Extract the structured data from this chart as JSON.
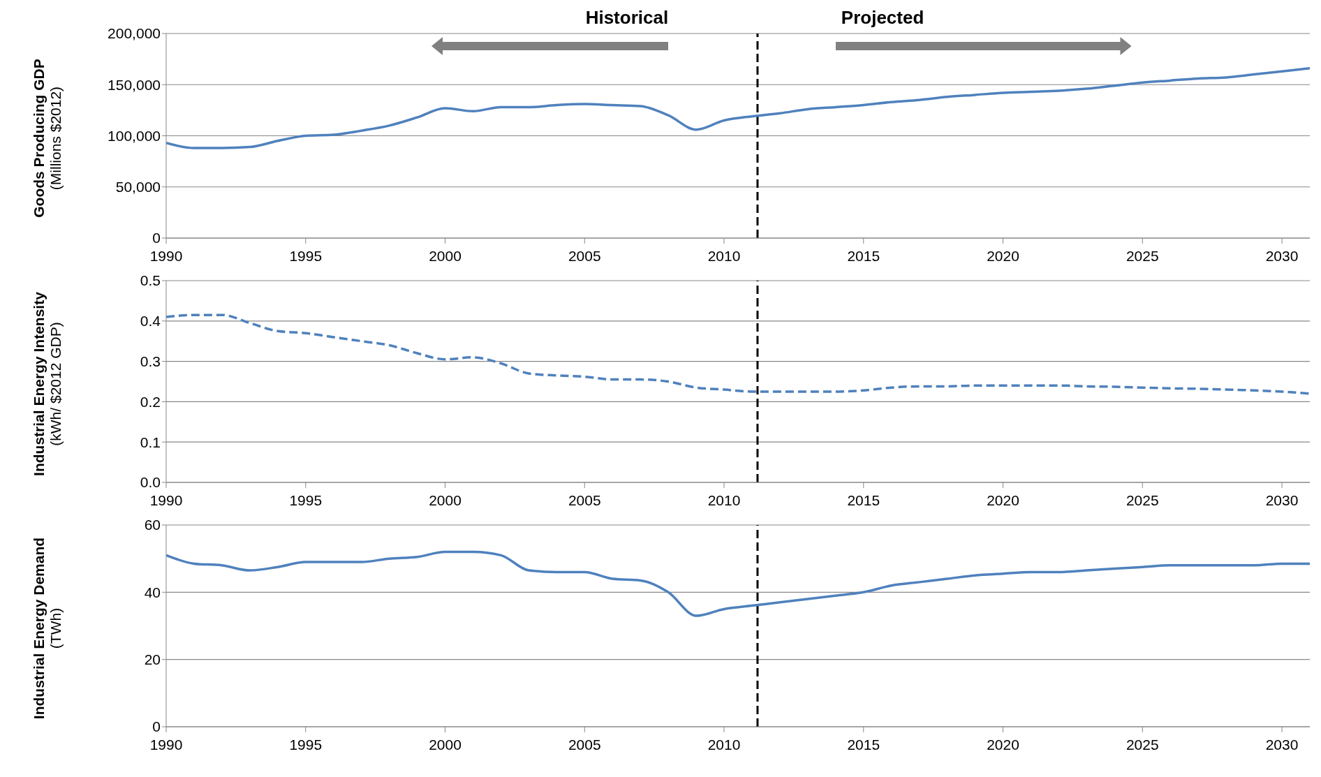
{
  "chart_data": [
    {
      "type": "line",
      "ylabel": "Goods Producing GDP (Millions $2012)",
      "annotations": [
        "Historical",
        "Projected"
      ],
      "x": [
        1990,
        1991,
        1992,
        1993,
        1994,
        1995,
        1996,
        1997,
        1998,
        1999,
        2000,
        2001,
        2002,
        2003,
        2004,
        2005,
        2006,
        2007,
        2008,
        2009,
        2010,
        2011,
        2012,
        2013,
        2014,
        2015,
        2016,
        2017,
        2018,
        2019,
        2020,
        2021,
        2022,
        2023,
        2024,
        2025,
        2026,
        2027,
        2028,
        2029,
        2030,
        2031
      ],
      "series": [
        {
          "color": "#4f81bd",
          "line_style": "solid",
          "values": [
            93000,
            88000,
            88000,
            89000,
            95000,
            100000,
            101000,
            105000,
            110000,
            118000,
            127000,
            124000,
            128000,
            128000,
            130000,
            131000,
            130000,
            129000,
            120000,
            106000,
            115000,
            119000,
            122000,
            126000,
            128000,
            130000,
            133000,
            135000,
            138000,
            140000,
            142000,
            143000,
            144000,
            146000,
            149000,
            152000,
            154000,
            156000,
            157000,
            160000,
            163000,
            166000
          ]
        }
      ],
      "xlim": [
        1990,
        2031
      ],
      "xticks": [
        1990,
        1995,
        2000,
        2005,
        2010,
        2015,
        2020,
        2025,
        2030
      ],
      "ylim": [
        0,
        200000
      ],
      "yticks": [
        {
          "value": 0,
          "label": "0"
        },
        {
          "value": 50000,
          "label": "50,000"
        },
        {
          "value": 100000,
          "label": "100,000"
        },
        {
          "value": 150000,
          "label": "150,000"
        },
        {
          "value": 200000,
          "label": "200,000"
        }
      ],
      "ref_lines": [
        {
          "axis": "x",
          "value": 2011.2,
          "color": "#000000",
          "line_style": "dashed"
        }
      ],
      "grid": "y",
      "legend": false,
      "marker": "none"
    },
    {
      "type": "line",
      "ylabel": "Industrial Energy Intensity (kWh/ $2012 GDP)",
      "x": [
        1990,
        1991,
        1992,
        1993,
        1994,
        1995,
        1996,
        1997,
        1998,
        1999,
        2000,
        2001,
        2002,
        2003,
        2004,
        2005,
        2006,
        2007,
        2008,
        2009,
        2010,
        2011,
        2012,
        2013,
        2014,
        2015,
        2016,
        2017,
        2018,
        2019,
        2020,
        2021,
        2022,
        2023,
        2024,
        2025,
        2026,
        2027,
        2028,
        2029,
        2030,
        2031
      ],
      "series": [
        {
          "color": "#4f81bd",
          "line_style": "dashed",
          "values": [
            0.41,
            0.415,
            0.415,
            0.395,
            0.375,
            0.37,
            0.36,
            0.35,
            0.34,
            0.32,
            0.305,
            0.31,
            0.295,
            0.27,
            0.265,
            0.262,
            0.255,
            0.255,
            0.25,
            0.235,
            0.23,
            0.225,
            0.225,
            0.225,
            0.225,
            0.228,
            0.235,
            0.238,
            0.238,
            0.24,
            0.24,
            0.24,
            0.24,
            0.238,
            0.237,
            0.235,
            0.233,
            0.232,
            0.23,
            0.228,
            0.225,
            0.22
          ]
        }
      ],
      "xlim": [
        1990,
        2031
      ],
      "xticks": [
        1990,
        1995,
        2000,
        2005,
        2010,
        2015,
        2020,
        2025,
        2030
      ],
      "ylim": [
        0,
        0.5
      ],
      "yticks": [
        {
          "value": 0,
          "label": "0.0"
        },
        {
          "value": 0.1,
          "label": "0.1"
        },
        {
          "value": 0.2,
          "label": "0.2"
        },
        {
          "value": 0.3,
          "label": "0.3"
        },
        {
          "value": 0.4,
          "label": "0.4"
        },
        {
          "value": 0.5,
          "label": "0.5"
        }
      ],
      "ref_lines": [
        {
          "axis": "x",
          "value": 2011.2,
          "color": "#000000",
          "line_style": "dashed"
        }
      ],
      "grid": "y",
      "legend": false,
      "marker": "none"
    },
    {
      "type": "line",
      "ylabel": "Industrial Energy Demand (TWh)",
      "x": [
        1990,
        1991,
        1992,
        1993,
        1994,
        1995,
        1996,
        1997,
        1998,
        1999,
        2000,
        2001,
        2002,
        2003,
        2004,
        2005,
        2006,
        2007,
        2008,
        2009,
        2010,
        2011,
        2012,
        2013,
        2014,
        2015,
        2016,
        2017,
        2018,
        2019,
        2020,
        2021,
        2022,
        2023,
        2024,
        2025,
        2026,
        2027,
        2028,
        2029,
        2030,
        2031
      ],
      "series": [
        {
          "color": "#4f81bd",
          "line_style": "solid",
          "values": [
            51,
            48.5,
            48,
            46.5,
            47.5,
            49,
            49,
            49,
            50,
            50.5,
            52,
            52,
            51,
            46.5,
            46,
            46,
            44,
            43.5,
            40,
            33,
            35,
            36,
            37,
            38,
            39,
            40,
            42,
            43,
            44,
            45,
            45.5,
            46,
            46,
            46.5,
            47,
            47.5,
            48,
            48,
            48,
            48,
            48.5,
            48.5
          ]
        }
      ],
      "xlim": [
        1990,
        2031
      ],
      "xticks": [
        1990,
        1995,
        2000,
        2005,
        2010,
        2015,
        2020,
        2025,
        2030
      ],
      "ylim": [
        0,
        60
      ],
      "yticks": [
        0,
        20,
        40,
        60
      ],
      "ref_lines": [
        {
          "axis": "x",
          "value": 2011.2,
          "color": "#000000",
          "line_style": "dashed"
        }
      ],
      "grid": "y",
      "legend": false,
      "marker": "none"
    }
  ]
}
